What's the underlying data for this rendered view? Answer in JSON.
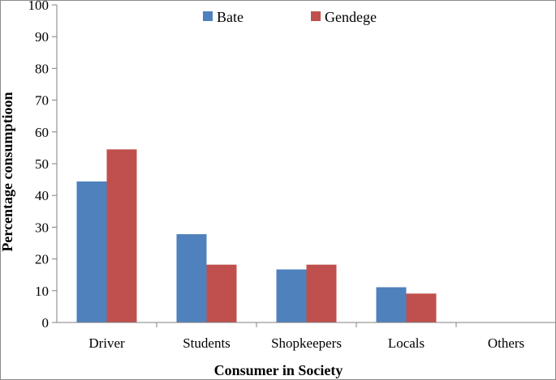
{
  "chart_data": {
    "type": "bar",
    "title": "",
    "xlabel": "Consumer in Society",
    "ylabel": "Percentage  consumptioon",
    "categories": [
      "Driver",
      "Students",
      "Shopkeepers",
      "Locals",
      "Others"
    ],
    "series": [
      {
        "name": "Bate",
        "color": "#4f81bd",
        "values": [
          44.4,
          27.8,
          16.7,
          11.1,
          0
        ]
      },
      {
        "name": "Gendege",
        "color": "#c0504d",
        "values": [
          54.5,
          18.2,
          18.2,
          9.1,
          0
        ]
      }
    ],
    "ylim": [
      0,
      100
    ],
    "yticks": [
      "0",
      "10",
      "20",
      "30",
      "40",
      "50",
      "60",
      "70",
      "80",
      "90",
      "100"
    ],
    "grid": false,
    "legend_position": "top"
  }
}
